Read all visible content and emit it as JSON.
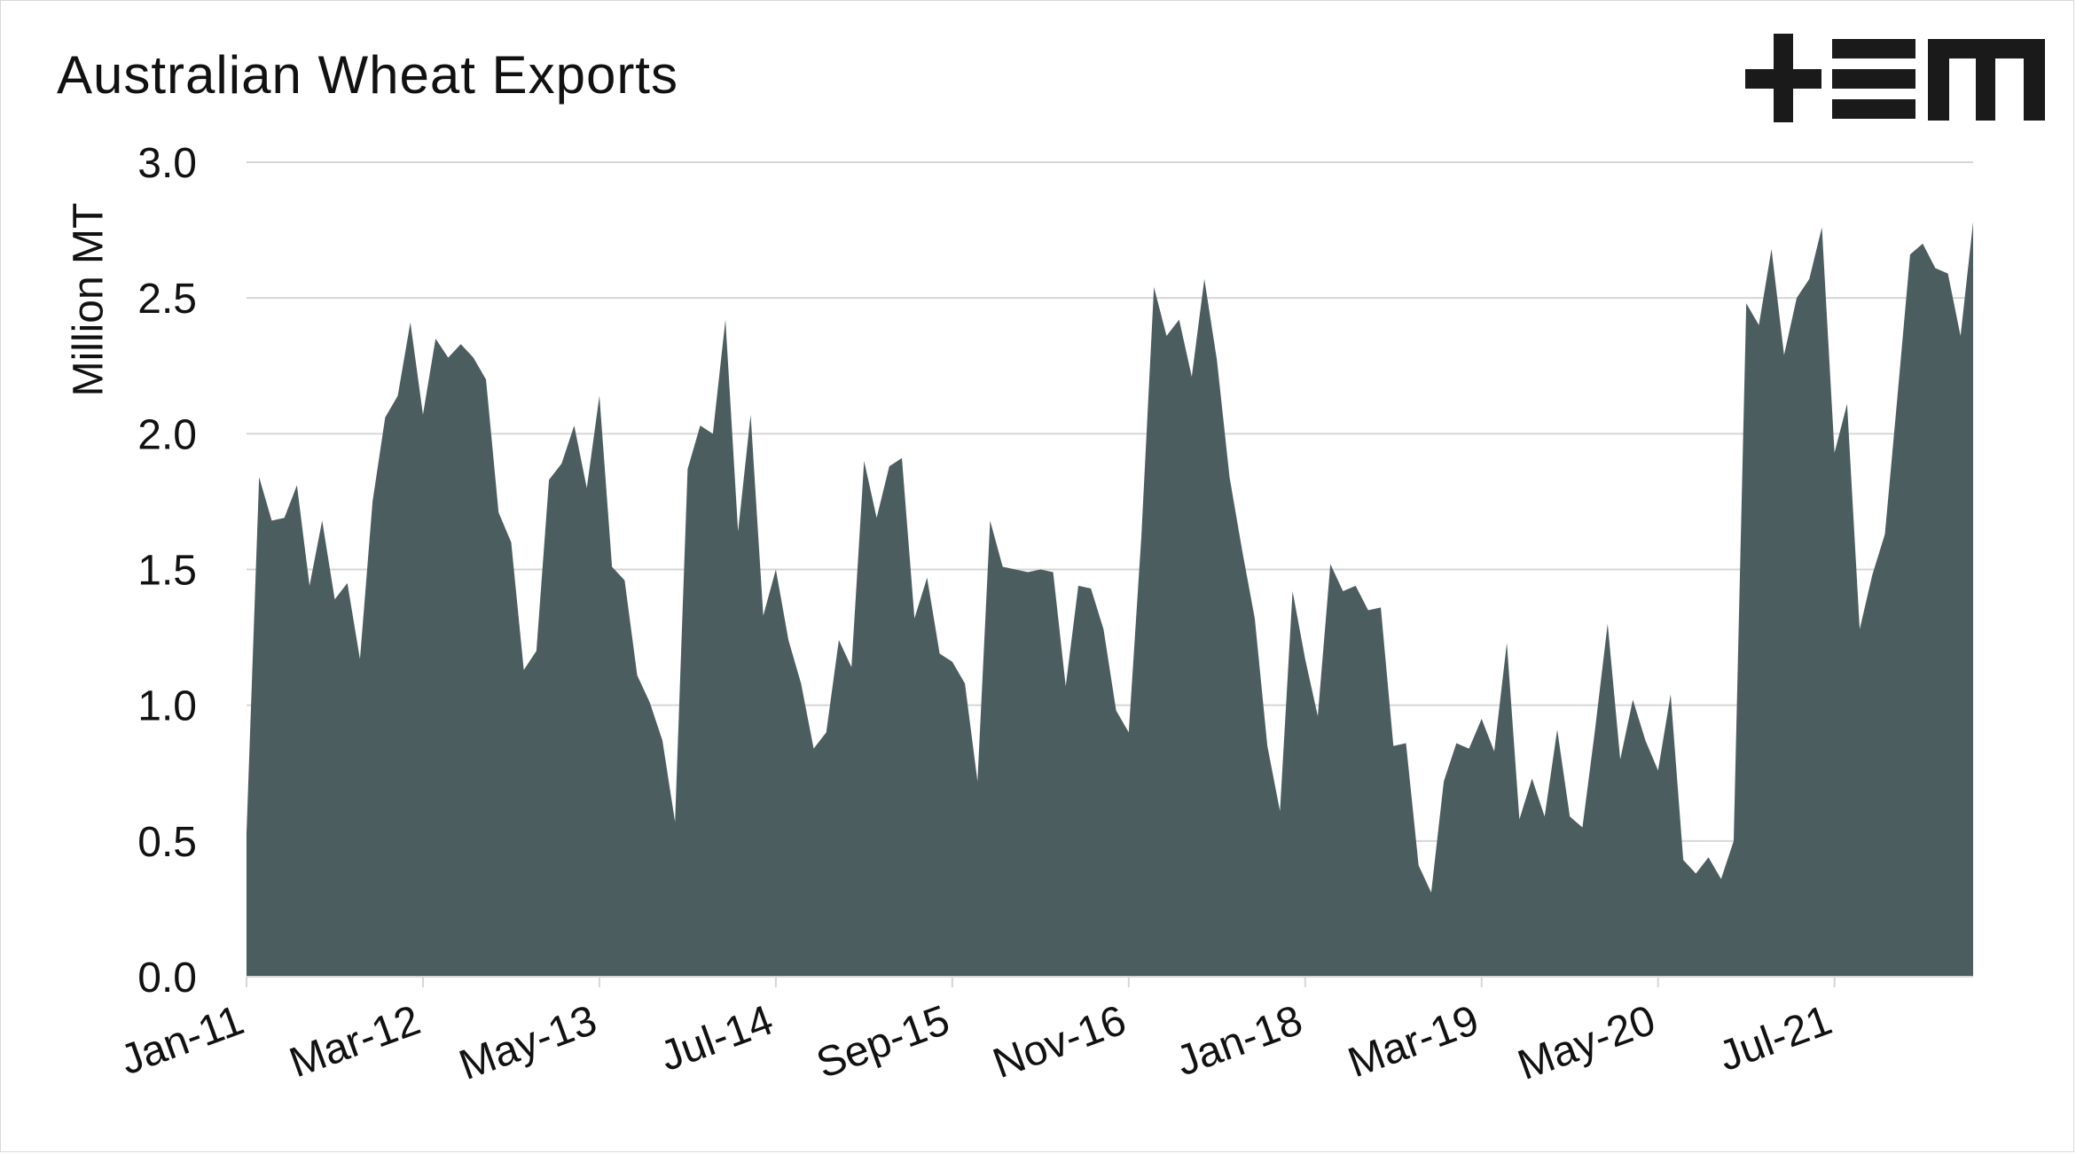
{
  "logo": {
    "text": "+EM",
    "icon": "tem-logo"
  },
  "chart_data": {
    "type": "area",
    "title": "Australian Wheat Exports",
    "ylabel": "Million MT",
    "xlabel": "",
    "ylim": [
      0,
      3.0
    ],
    "yticks": [
      "0.0",
      "0.5",
      "1.0",
      "1.5",
      "2.0",
      "2.5",
      "3.0"
    ],
    "xtick_labels": [
      "Jan-11",
      "Mar-12",
      "May-13",
      "Jul-14",
      "Sep-15",
      "Nov-16",
      "Jan-18",
      "Mar-19",
      "May-20",
      "Jul-21"
    ],
    "grid": "horizontal",
    "series": [
      {
        "color": "#4c5d60",
        "x_start": "Jan-11",
        "frequency": "monthly",
        "values": [
          0.53,
          1.84,
          1.68,
          1.69,
          1.81,
          1.44,
          1.68,
          1.39,
          1.45,
          1.17,
          1.75,
          2.06,
          2.14,
          2.41,
          2.07,
          2.35,
          2.28,
          2.33,
          2.28,
          2.2,
          1.71,
          1.6,
          1.13,
          1.2,
          1.83,
          1.89,
          2.03,
          1.8,
          2.14,
          1.51,
          1.46,
          1.11,
          1.01,
          0.87,
          0.57,
          1.87,
          2.03,
          2.0,
          2.42,
          1.64,
          2.07,
          1.33,
          1.5,
          1.24,
          1.08,
          0.84,
          0.9,
          1.24,
          1.14,
          1.9,
          1.69,
          1.88,
          1.91,
          1.32,
          1.47,
          1.19,
          1.16,
          1.08,
          0.72,
          1.68,
          1.51,
          1.5,
          1.49,
          1.5,
          1.49,
          1.07,
          1.44,
          1.43,
          1.28,
          0.98,
          0.9,
          1.62,
          2.54,
          2.36,
          2.42,
          2.21,
          2.57,
          2.27,
          1.84,
          1.57,
          1.32,
          0.85,
          0.61,
          1.42,
          1.17,
          0.96,
          1.52,
          1.42,
          1.44,
          1.35,
          1.36,
          0.85,
          0.86,
          0.41,
          0.31,
          0.72,
          0.86,
          0.84,
          0.95,
          0.83,
          1.23,
          0.58,
          0.73,
          0.59,
          0.91,
          0.59,
          0.55,
          0.91,
          1.3,
          0.8,
          1.02,
          0.87,
          0.76,
          1.04,
          0.43,
          0.38,
          0.44,
          0.36,
          0.5,
          2.48,
          2.4,
          2.68,
          2.29,
          2.5,
          2.57,
          2.76,
          1.93,
          2.11,
          1.28,
          1.48,
          1.63,
          2.14,
          2.66,
          2.7,
          2.61,
          2.59,
          2.36,
          2.78
        ]
      }
    ]
  }
}
